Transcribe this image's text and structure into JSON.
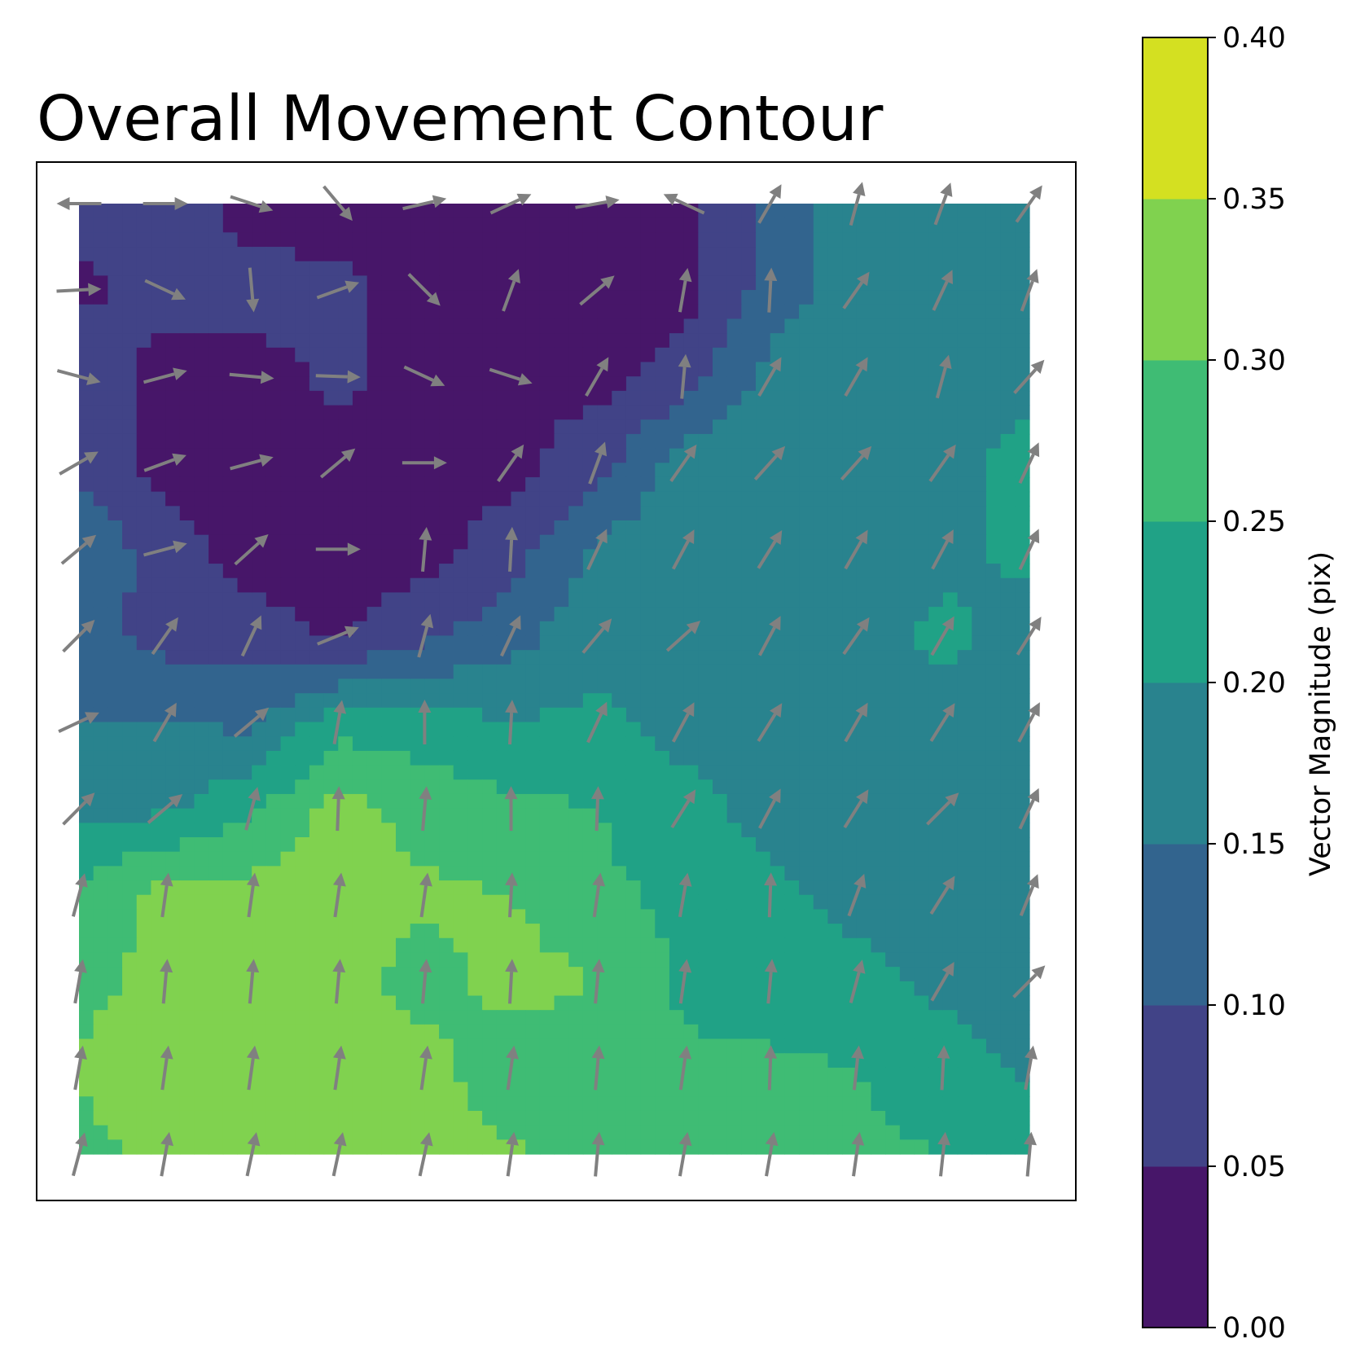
{
  "chart_data": {
    "type": "contour",
    "title": "Overall Movement Contour",
    "xlabel": "",
    "ylabel": "",
    "colorbar": {
      "label": "Vector Magnitude (pix)",
      "levels": [
        0.0,
        0.05,
        0.1,
        0.15,
        0.2,
        0.25,
        0.3,
        0.35,
        0.4
      ],
      "tick_labels": [
        "0.00",
        "0.05",
        "0.10",
        "0.15",
        "0.20",
        "0.25",
        "0.30",
        "0.35",
        "0.40"
      ],
      "colors": [
        "#471669",
        "#414387",
        "#32648e",
        "#29838e",
        "#20a286",
        "#3fbc74",
        "#80d24f",
        "#d4e021"
      ]
    },
    "grid": {
      "nx": 12,
      "ny": 12,
      "x": [
        0,
        1,
        2,
        3,
        4,
        5,
        6,
        7,
        8,
        9,
        10,
        11
      ],
      "y": [
        0,
        1,
        2,
        3,
        4,
        5,
        6,
        7,
        8,
        9,
        10,
        11
      ]
    },
    "magnitude": [
      [
        0.07,
        0.08,
        0.03,
        0.03,
        0.03,
        0.03,
        0.03,
        0.03,
        0.11,
        0.18,
        0.18,
        0.18
      ],
      [
        0.04,
        0.07,
        0.07,
        0.06,
        0.03,
        0.03,
        0.04,
        0.03,
        0.12,
        0.18,
        0.19,
        0.18
      ],
      [
        0.08,
        0.03,
        0.03,
        0.06,
        0.03,
        0.05,
        0.03,
        0.07,
        0.17,
        0.18,
        0.18,
        0.19
      ],
      [
        0.08,
        0.03,
        0.03,
        0.04,
        0.03,
        0.03,
        0.08,
        0.18,
        0.2,
        0.18,
        0.19,
        0.21
      ],
      [
        0.15,
        0.07,
        0.03,
        0.03,
        0.03,
        0.08,
        0.16,
        0.18,
        0.18,
        0.18,
        0.19,
        0.21
      ],
      [
        0.12,
        0.08,
        0.07,
        0.04,
        0.09,
        0.13,
        0.19,
        0.18,
        0.19,
        0.18,
        0.21,
        0.18
      ],
      [
        0.15,
        0.15,
        0.14,
        0.23,
        0.22,
        0.2,
        0.21,
        0.18,
        0.18,
        0.18,
        0.18,
        0.18
      ],
      [
        0.19,
        0.19,
        0.24,
        0.32,
        0.28,
        0.26,
        0.25,
        0.22,
        0.18,
        0.18,
        0.18,
        0.18
      ],
      [
        0.26,
        0.32,
        0.32,
        0.32,
        0.31,
        0.3,
        0.26,
        0.24,
        0.21,
        0.19,
        0.18,
        0.18
      ],
      [
        0.28,
        0.32,
        0.32,
        0.32,
        0.28,
        0.32,
        0.3,
        0.24,
        0.22,
        0.21,
        0.19,
        0.18
      ],
      [
        0.31,
        0.33,
        0.33,
        0.32,
        0.32,
        0.26,
        0.28,
        0.26,
        0.26,
        0.25,
        0.22,
        0.19
      ],
      [
        0.28,
        0.32,
        0.32,
        0.32,
        0.32,
        0.31,
        0.26,
        0.26,
        0.26,
        0.26,
        0.25,
        0.24
      ]
    ],
    "vector_angle_deg": [
      [
        180,
        0,
        -18,
        -50,
        13,
        25,
        10,
        155,
        60,
        75,
        70,
        55
      ],
      [
        3,
        -25,
        -85,
        20,
        -45,
        70,
        40,
        80,
        87,
        55,
        65,
        70
      ],
      [
        -15,
        15,
        -5,
        -2,
        -25,
        -18,
        60,
        85,
        60,
        60,
        75,
        48
      ],
      [
        30,
        20,
        15,
        40,
        0,
        55,
        70,
        55,
        48,
        48,
        55,
        65
      ],
      [
        40,
        15,
        42,
        0,
        85,
        87,
        65,
        62,
        58,
        60,
        62,
        65
      ],
      [
        45,
        55,
        65,
        22,
        75,
        65,
        50,
        42,
        62,
        55,
        60,
        58
      ],
      [
        25,
        60,
        40,
        80,
        90,
        87,
        65,
        62,
        58,
        60,
        58,
        62
      ],
      [
        45,
        40,
        75,
        88,
        85,
        90,
        88,
        58,
        62,
        58,
        45,
        65
      ],
      [
        75,
        82,
        82,
        82,
        82,
        87,
        82,
        80,
        88,
        70,
        58,
        68
      ],
      [
        80,
        85,
        85,
        85,
        85,
        87,
        85,
        82,
        85,
        75,
        60,
        45
      ],
      [
        80,
        82,
        82,
        82,
        82,
        82,
        85,
        82,
        88,
        84,
        87,
        80
      ],
      [
        75,
        80,
        78,
        78,
        78,
        82,
        85,
        80,
        80,
        82,
        84,
        85
      ]
    ],
    "vector_color": "#808080",
    "legend": "colorbar-right",
    "grid_lines": false
  }
}
